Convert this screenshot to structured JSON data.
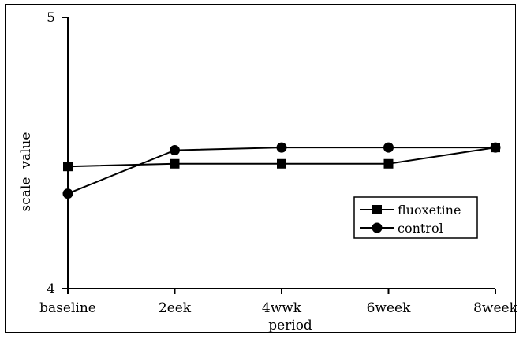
{
  "chart_data": {
    "type": "line",
    "categories": [
      "baseline",
      "2eek",
      "4wwk",
      "6week",
      "8week"
    ],
    "series": [
      {
        "name": "fluoxetine",
        "marker": "square",
        "values": [
          4.45,
          4.46,
          4.46,
          4.46,
          4.52
        ]
      },
      {
        "name": "control",
        "marker": "circle",
        "values": [
          4.35,
          4.51,
          4.52,
          4.52,
          4.52
        ]
      }
    ],
    "title": "",
    "xlabel": "period",
    "ylabel": "scale  value",
    "ylim": [
      4,
      5
    ],
    "yticks": [
      "4",
      "5"
    ],
    "grid": false,
    "legend": "right",
    "colors": {
      "line": "#000000",
      "background": "#ffffff"
    }
  }
}
